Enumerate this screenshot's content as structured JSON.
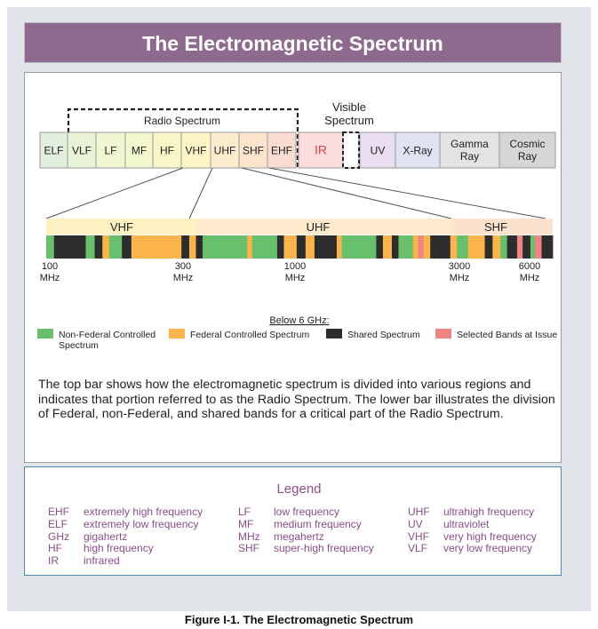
{
  "title": "The Electromagnetic Spectrum",
  "top_bar": {
    "radio_spectrum_label": "Radio Spectrum",
    "visible_label_line1": "Visible",
    "visible_label_line2": "Spectrum",
    "bands": [
      {
        "label": "ELF",
        "lines": [
          "ELF"
        ],
        "color": "#e2efdf"
      },
      {
        "label": "VLF",
        "lines": [
          "VLF"
        ],
        "color": "#e9f3d7"
      },
      {
        "label": "LF",
        "lines": [
          "LF"
        ],
        "color": "#eef6d2"
      },
      {
        "label": "MF",
        "lines": [
          "MF"
        ],
        "color": "#f2f7cd"
      },
      {
        "label": "HF",
        "lines": [
          "HF"
        ],
        "color": "#f9f7c8"
      },
      {
        "label": "VHF",
        "lines": [
          "VHF"
        ],
        "color": "#fdf5c6"
      },
      {
        "label": "UHF",
        "lines": [
          "UHF"
        ],
        "color": "#fdeccd"
      },
      {
        "label": "SHF",
        "lines": [
          "SHF"
        ],
        "color": "#fde4cd"
      },
      {
        "label": "EHF",
        "lines": [
          "EHF"
        ],
        "color": "#fbdcd2"
      },
      {
        "label": "IR",
        "lines": [
          "IR"
        ],
        "color": "#fcdcdc",
        "text_color": "#d9484a"
      },
      {
        "label": "",
        "lines": [
          ""
        ],
        "color": "#ffffff"
      },
      {
        "label": "UV",
        "lines": [
          "UV"
        ],
        "color": "#e9ddf0"
      },
      {
        "label": "X-Ray",
        "lines": [
          "X-Ray"
        ],
        "color": "#dfe3f2"
      },
      {
        "label": "Gamma Ray",
        "lines": [
          "Gamma",
          "Ray"
        ],
        "color": "#e3e3e3"
      },
      {
        "label": "Cosmic Ray",
        "lines": [
          "Cosmic",
          "Ray"
        ],
        "color": "#d6d6d6"
      }
    ]
  },
  "lower_bar": {
    "band_labels": [
      "VHF",
      "UHF",
      "SHF"
    ],
    "tick_labels": [
      {
        "value": "100",
        "unit": "MHz"
      },
      {
        "value": "300",
        "unit": "MHz"
      },
      {
        "value": "1000",
        "unit": "MHz"
      },
      {
        "value": "3000",
        "unit": "MHz"
      },
      {
        "value": "6000",
        "unit": "MHz"
      }
    ],
    "segments": [
      {
        "type": "non_federal",
        "fraction": 0.014
      },
      {
        "type": "shared",
        "fraction": 0.057
      },
      {
        "type": "non_federal",
        "fraction": 0.016
      },
      {
        "type": "shared",
        "fraction": 0.014
      },
      {
        "type": "federal",
        "fraction": 0.012
      },
      {
        "type": "non_federal",
        "fraction": 0.023
      },
      {
        "type": "shared",
        "fraction": 0.017
      },
      {
        "type": "federal",
        "fraction": 0.09
      },
      {
        "type": "shared",
        "fraction": 0.014
      },
      {
        "type": "federal",
        "fraction": 0.012
      },
      {
        "type": "shared",
        "fraction": 0.012
      },
      {
        "type": "non_federal",
        "fraction": 0.08
      },
      {
        "type": "federal",
        "fraction": 0.009
      },
      {
        "type": "non_federal",
        "fraction": 0.045
      },
      {
        "type": "shared",
        "fraction": 0.012
      },
      {
        "type": "federal",
        "fraction": 0.023
      },
      {
        "type": "shared",
        "fraction": 0.016
      },
      {
        "type": "federal",
        "fraction": 0.016
      },
      {
        "type": "shared",
        "fraction": 0.04
      },
      {
        "type": "federal",
        "fraction": 0.009
      },
      {
        "type": "non_federal",
        "fraction": 0.062
      },
      {
        "type": "shared",
        "fraction": 0.012
      },
      {
        "type": "federal",
        "fraction": 0.016
      },
      {
        "type": "shared",
        "fraction": 0.012
      },
      {
        "type": "non_federal",
        "fraction": 0.026
      },
      {
        "type": "federal",
        "fraction": 0.009
      },
      {
        "type": "selected",
        "fraction": 0.01
      },
      {
        "type": "federal",
        "fraction": 0.012
      },
      {
        "type": "shared",
        "fraction": 0.036
      },
      {
        "type": "federal",
        "fraction": 0.012
      },
      {
        "type": "non_federal",
        "fraction": 0.02
      },
      {
        "type": "federal",
        "fraction": 0.03
      },
      {
        "type": "shared",
        "fraction": 0.014
      },
      {
        "type": "federal",
        "fraction": 0.014
      },
      {
        "type": "non_federal",
        "fraction": 0.012
      },
      {
        "type": "shared",
        "fraction": 0.018
      },
      {
        "type": "selected",
        "fraction": 0.01
      },
      {
        "type": "shared",
        "fraction": 0.014
      },
      {
        "type": "non_federal",
        "fraction": 0.008
      },
      {
        "type": "selected",
        "fraction": 0.012
      },
      {
        "type": "shared",
        "fraction": 0.02
      }
    ]
  },
  "key": {
    "heading": "Below 6 GHz:",
    "items": [
      {
        "type": "non_federal",
        "label_line1": "Non-Federal Controlled",
        "label_line2": "Spectrum",
        "color": "#69c06c"
      },
      {
        "type": "federal",
        "label_line1": "Federal Controlled Spectrum",
        "label_line2": "",
        "color": "#fbb34c"
      },
      {
        "type": "shared",
        "label_line1": "Shared Spectrum",
        "label_line2": "",
        "color": "#2d2d2d"
      },
      {
        "type": "selected",
        "label_line1": "Selected Bands at Issue",
        "label_line2": "",
        "color": "#f08484"
      }
    ]
  },
  "description": "The top bar shows how the electromagnetic spectrum is divided into various regions and indicates that portion referred to as the Radio Spectrum.  The lower bar illustrates the division of Federal, non-Federal, and shared bands for a critical part of the Radio Spectrum.",
  "legend": {
    "title": "Legend",
    "columns": [
      [
        {
          "abbr": "EHF",
          "meaning": "extremely high frequency"
        },
        {
          "abbr": "ELF",
          "meaning": "extremely low frequency"
        },
        {
          "abbr": "GHz",
          "meaning": "gigahertz"
        },
        {
          "abbr": "HF",
          "meaning": "high frequency"
        },
        {
          "abbr": "IR",
          "meaning": "infrared"
        }
      ],
      [
        {
          "abbr": "LF",
          "meaning": "low frequency"
        },
        {
          "abbr": "MF",
          "meaning": "medium frequency"
        },
        {
          "abbr": "MHz",
          "meaning": "megahertz"
        },
        {
          "abbr": "SHF",
          "meaning": "super-high frequency"
        }
      ],
      [
        {
          "abbr": "UHF",
          "meaning": "ultrahigh frequency"
        },
        {
          "abbr": "UV",
          "meaning": "ultraviolet"
        },
        {
          "abbr": "VHF",
          "meaning": "very high frequency"
        },
        {
          "abbr": "VLF",
          "meaning": "very low frequency"
        }
      ]
    ]
  },
  "caption": "Figure I-1. The Electromagnetic Spectrum",
  "colors": {
    "title_background": "#8f6a8f",
    "legend_text": "#8a4d8a",
    "legend_border": "#4d87aa",
    "vhf_band": "#fdf1c2",
    "uhf_band": "#fde9cb",
    "shf_band": "#fde1cf"
  }
}
